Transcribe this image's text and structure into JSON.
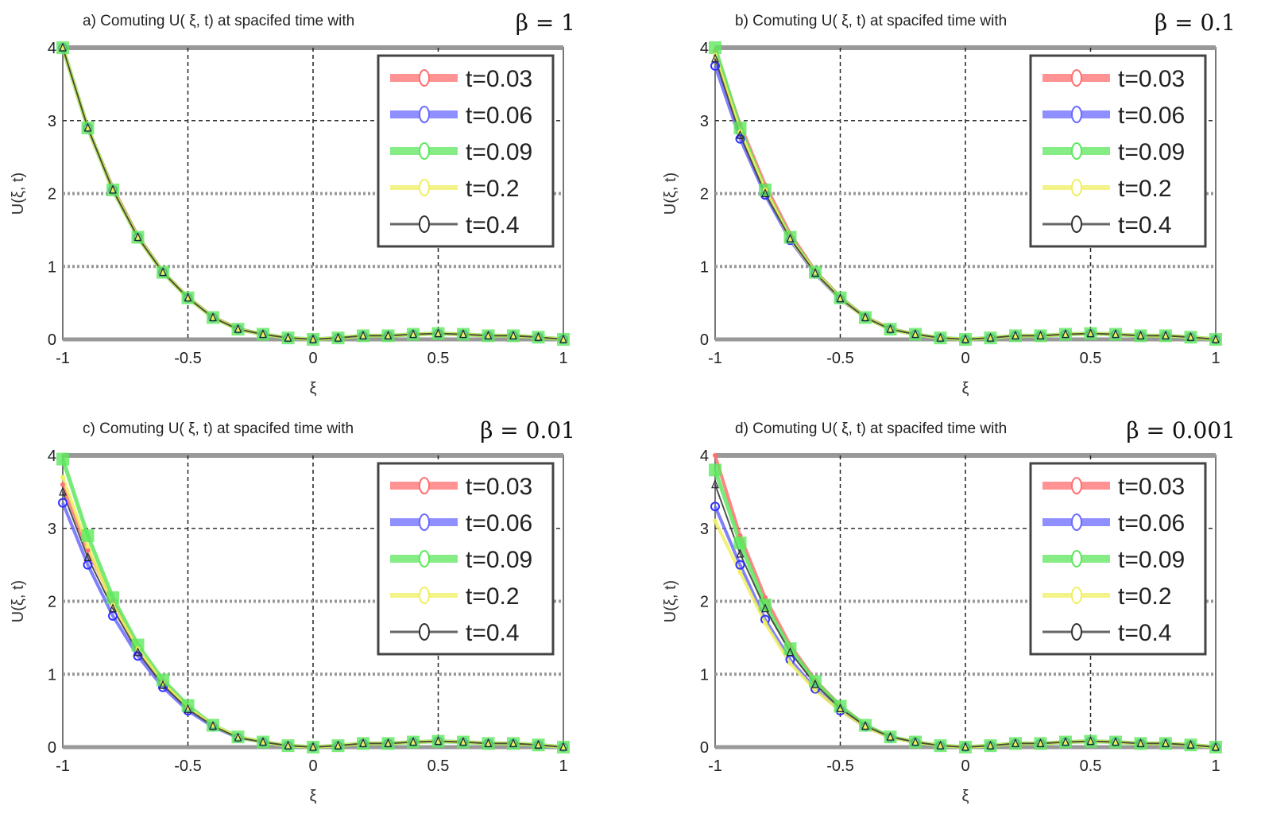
{
  "chart_data": [
    {
      "type": "line",
      "title": "a) Comuting  U( ξ, t) at spacifed time with",
      "beta_label": "β = 1",
      "xlabel": "ξ",
      "ylabel": "U(ξ, t)",
      "xlim": [
        -1,
        1
      ],
      "ylim": [
        0,
        4
      ],
      "xticks": [
        "-1",
        "-0.5",
        "0",
        "0.5",
        "1"
      ],
      "yticks": [
        "0",
        "1",
        "2",
        "3",
        "4"
      ],
      "grid": true,
      "legend_position": "top-right",
      "x": [
        -1,
        -0.9,
        -0.8,
        -0.7,
        -0.6,
        -0.5,
        -0.4,
        -0.3,
        -0.2,
        -0.1,
        0,
        0.1,
        0.2,
        0.3,
        0.4,
        0.5,
        0.6,
        0.7,
        0.8,
        0.9,
        1
      ],
      "series": [
        {
          "name": "t=0.03",
          "color": "#ff7070",
          "values": [
            4,
            2.9,
            2.08,
            1.42,
            0.93,
            0.58,
            0.31,
            0.15,
            0.07,
            0.02,
            0,
            0.02,
            0.05,
            0.05,
            0.07,
            0.08,
            0.07,
            0.05,
            0.05,
            0.03,
            0
          ]
        },
        {
          "name": "t=0.06",
          "color": "#6a6aff",
          "values": [
            4,
            2.9,
            2.05,
            1.4,
            0.92,
            0.57,
            0.3,
            0.14,
            0.07,
            0.02,
            0,
            0.02,
            0.05,
            0.05,
            0.07,
            0.08,
            0.07,
            0.05,
            0.05,
            0.03,
            0
          ]
        },
        {
          "name": "t=0.09",
          "color": "#5ee85e",
          "values": [
            4,
            2.9,
            2.05,
            1.4,
            0.92,
            0.57,
            0.3,
            0.14,
            0.07,
            0.02,
            0,
            0.02,
            0.05,
            0.05,
            0.07,
            0.08,
            0.07,
            0.05,
            0.05,
            0.03,
            0
          ]
        },
        {
          "name": "t=0.2",
          "color": "#f0f060",
          "values": [
            4,
            2.9,
            2.05,
            1.4,
            0.92,
            0.57,
            0.3,
            0.14,
            0.07,
            0.02,
            0,
            0.02,
            0.05,
            0.05,
            0.07,
            0.08,
            0.07,
            0.05,
            0.05,
            0.03,
            0
          ]
        },
        {
          "name": "t=0.4",
          "color": "#333333",
          "values": [
            4,
            2.9,
            2.05,
            1.4,
            0.92,
            0.57,
            0.3,
            0.14,
            0.07,
            0.02,
            0,
            0.02,
            0.05,
            0.05,
            0.07,
            0.08,
            0.07,
            0.05,
            0.05,
            0.03,
            0
          ]
        }
      ]
    },
    {
      "type": "line",
      "title": "b) Comuting  U( ξ, t) at spacifed time with",
      "beta_label": "β = 0.1",
      "xlabel": "ξ",
      "ylabel": "U(ξ, t)",
      "xlim": [
        -1,
        1
      ],
      "ylim": [
        0,
        4
      ],
      "xticks": [
        "-1",
        "-0.5",
        "0",
        "0.5",
        "1"
      ],
      "yticks": [
        "0",
        "1",
        "2",
        "3",
        "4"
      ],
      "grid": true,
      "legend_position": "top-right",
      "x": [
        -1,
        -0.9,
        -0.8,
        -0.7,
        -0.6,
        -0.5,
        -0.4,
        -0.3,
        -0.2,
        -0.1,
        0,
        0.1,
        0.2,
        0.3,
        0.4,
        0.5,
        0.6,
        0.7,
        0.8,
        0.9,
        1
      ],
      "series": [
        {
          "name": "t=0.03",
          "color": "#ff7070",
          "values": [
            3.95,
            2.95,
            2.12,
            1.45,
            0.94,
            0.58,
            0.31,
            0.15,
            0.07,
            0.02,
            0,
            0.02,
            0.05,
            0.05,
            0.07,
            0.08,
            0.07,
            0.05,
            0.05,
            0.03,
            0
          ]
        },
        {
          "name": "t=0.06",
          "color": "#6a6aff",
          "values": [
            3.75,
            2.75,
            1.98,
            1.36,
            0.9,
            0.55,
            0.3,
            0.14,
            0.07,
            0.02,
            0,
            0.02,
            0.05,
            0.05,
            0.07,
            0.08,
            0.07,
            0.05,
            0.05,
            0.03,
            0
          ]
        },
        {
          "name": "t=0.09",
          "color": "#5ee85e",
          "values": [
            4,
            2.9,
            2.05,
            1.4,
            0.92,
            0.57,
            0.3,
            0.14,
            0.07,
            0.02,
            0,
            0.02,
            0.05,
            0.05,
            0.07,
            0.08,
            0.07,
            0.05,
            0.05,
            0.03,
            0
          ]
        },
        {
          "name": "t=0.2",
          "color": "#f0f060",
          "values": [
            3.9,
            2.85,
            2.05,
            1.38,
            0.92,
            0.56,
            0.3,
            0.14,
            0.07,
            0.02,
            0,
            0.02,
            0.05,
            0.05,
            0.07,
            0.08,
            0.07,
            0.05,
            0.05,
            0.03,
            0
          ]
        },
        {
          "name": "t=0.4",
          "color": "#333333",
          "values": [
            3.85,
            2.8,
            2.0,
            1.38,
            0.91,
            0.56,
            0.3,
            0.14,
            0.07,
            0.02,
            0,
            0.02,
            0.05,
            0.05,
            0.07,
            0.08,
            0.07,
            0.05,
            0.05,
            0.03,
            0
          ]
        }
      ]
    },
    {
      "type": "line",
      "title": "c) Comuting  U( ξ, t) at spacifed time with",
      "beta_label": "β = 0.01",
      "xlabel": "ξ",
      "ylabel": "U(ξ, t)",
      "xlim": [
        -1,
        1
      ],
      "ylim": [
        0,
        4
      ],
      "xticks": [
        "-1",
        "-0.5",
        "0",
        "0.5",
        "1"
      ],
      "yticks": [
        "0",
        "1",
        "2",
        "3",
        "4"
      ],
      "grid": true,
      "legend_position": "top-right",
      "x": [
        -1,
        -0.9,
        -0.8,
        -0.7,
        -0.6,
        -0.5,
        -0.4,
        -0.3,
        -0.2,
        -0.1,
        0,
        0.1,
        0.2,
        0.3,
        0.4,
        0.5,
        0.6,
        0.7,
        0.8,
        0.9,
        1
      ],
      "series": [
        {
          "name": "t=0.03",
          "color": "#ff7070",
          "values": [
            3.6,
            2.7,
            2.0,
            1.35,
            0.9,
            0.55,
            0.3,
            0.14,
            0.07,
            0.02,
            0,
            0.02,
            0.05,
            0.05,
            0.07,
            0.08,
            0.07,
            0.05,
            0.05,
            0.03,
            0
          ]
        },
        {
          "name": "t=0.06",
          "color": "#6a6aff",
          "values": [
            3.35,
            2.5,
            1.8,
            1.25,
            0.82,
            0.5,
            0.28,
            0.13,
            0.07,
            0.02,
            0,
            0.02,
            0.05,
            0.05,
            0.07,
            0.08,
            0.07,
            0.05,
            0.05,
            0.03,
            0
          ]
        },
        {
          "name": "t=0.09",
          "color": "#5ee85e",
          "values": [
            3.95,
            2.9,
            2.05,
            1.4,
            0.92,
            0.57,
            0.3,
            0.14,
            0.07,
            0.02,
            0,
            0.02,
            0.05,
            0.05,
            0.07,
            0.08,
            0.07,
            0.05,
            0.05,
            0.03,
            0
          ]
        },
        {
          "name": "t=0.2",
          "color": "#f0f060",
          "values": [
            3.7,
            2.75,
            1.95,
            1.35,
            0.88,
            0.54,
            0.3,
            0.14,
            0.07,
            0.02,
            0,
            0.02,
            0.05,
            0.05,
            0.07,
            0.08,
            0.07,
            0.05,
            0.05,
            0.03,
            0
          ]
        },
        {
          "name": "t=0.4",
          "color": "#333333",
          "values": [
            3.5,
            2.6,
            1.9,
            1.3,
            0.85,
            0.52,
            0.29,
            0.13,
            0.07,
            0.02,
            0,
            0.02,
            0.05,
            0.05,
            0.07,
            0.08,
            0.07,
            0.05,
            0.05,
            0.03,
            0
          ]
        }
      ]
    },
    {
      "type": "line",
      "title": "d) Comuting  U( ξ, t) at spacifed time with",
      "beta_label": "β = 0.001",
      "xlabel": "ξ",
      "ylabel": "U(ξ, t)",
      "xlim": [
        -1,
        1
      ],
      "ylim": [
        0,
        4
      ],
      "xticks": [
        "-1",
        "-0.5",
        "0",
        "0.5",
        "1"
      ],
      "yticks": [
        "0",
        "1",
        "2",
        "3",
        "4"
      ],
      "grid": true,
      "legend_position": "top-right",
      "x": [
        -1,
        -0.9,
        -0.8,
        -0.7,
        -0.6,
        -0.5,
        -0.4,
        -0.3,
        -0.2,
        -0.1,
        0,
        0.1,
        0.2,
        0.3,
        0.4,
        0.5,
        0.6,
        0.7,
        0.8,
        0.9,
        1
      ],
      "series": [
        {
          "name": "t=0.03",
          "color": "#ff7070",
          "values": [
            4,
            2.9,
            2.05,
            1.4,
            0.92,
            0.57,
            0.3,
            0.14,
            0.07,
            0.02,
            0,
            0.02,
            0.05,
            0.05,
            0.07,
            0.08,
            0.07,
            0.05,
            0.05,
            0.03,
            0
          ]
        },
        {
          "name": "t=0.06",
          "color": "#6a6aff",
          "values": [
            3.3,
            2.5,
            1.75,
            1.2,
            0.8,
            0.5,
            0.28,
            0.13,
            0.07,
            0.02,
            0,
            0.02,
            0.05,
            0.05,
            0.07,
            0.08,
            0.07,
            0.05,
            0.05,
            0.03,
            0
          ]
        },
        {
          "name": "t=0.09",
          "color": "#5ee85e",
          "values": [
            3.8,
            2.8,
            1.95,
            1.35,
            0.9,
            0.56,
            0.3,
            0.14,
            0.07,
            0.02,
            0,
            0.02,
            0.05,
            0.05,
            0.07,
            0.08,
            0.07,
            0.05,
            0.05,
            0.03,
            0
          ]
        },
        {
          "name": "t=0.2",
          "color": "#f0f060",
          "values": [
            3.1,
            2.4,
            1.7,
            1.15,
            0.78,
            0.5,
            0.28,
            0.13,
            0.07,
            0.02,
            0,
            0.02,
            0.05,
            0.05,
            0.07,
            0.08,
            0.07,
            0.05,
            0.05,
            0.03,
            0
          ]
        },
        {
          "name": "t=0.4",
          "color": "#333333",
          "values": [
            3.6,
            2.65,
            1.9,
            1.3,
            0.86,
            0.53,
            0.29,
            0.14,
            0.07,
            0.02,
            0,
            0.02,
            0.05,
            0.05,
            0.07,
            0.08,
            0.07,
            0.05,
            0.05,
            0.03,
            0
          ]
        }
      ]
    }
  ]
}
